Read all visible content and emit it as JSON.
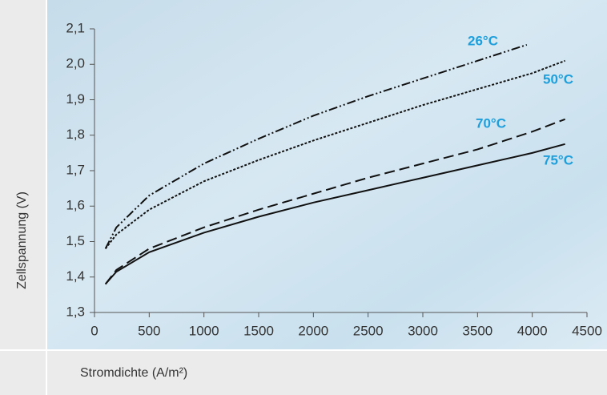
{
  "chart_data": {
    "type": "line",
    "x_label": "Stromdichte (A/m²)",
    "y_label": "Zellspannung (V)",
    "xlim": [
      0,
      4500
    ],
    "xticks": [
      0,
      500,
      1000,
      1500,
      2000,
      2500,
      3000,
      3500,
      4000,
      4500
    ],
    "ylim": [
      1.3,
      2.1
    ],
    "yticks": [
      {
        "value": 1.3,
        "label": "1,3"
      },
      {
        "value": 1.4,
        "label": "1,4"
      },
      {
        "value": 1.5,
        "label": "1,5"
      },
      {
        "value": 1.6,
        "label": "1,6"
      },
      {
        "value": 1.7,
        "label": "1,7"
      },
      {
        "value": 1.8,
        "label": "1,8"
      },
      {
        "value": 1.9,
        "label": "1,9"
      },
      {
        "value": 2.0,
        "label": "2,0"
      },
      {
        "value": 2.1,
        "label": "2,1"
      }
    ],
    "label_color": "#1e9fdc",
    "series": [
      {
        "name": "26°C",
        "color": "#111111",
        "line_style": "dash-dot-dot",
        "x": [
          100,
          200,
          500,
          1000,
          1500,
          2000,
          2500,
          3000,
          3500,
          3950
        ],
        "values": [
          1.48,
          1.54,
          1.63,
          1.72,
          1.79,
          1.855,
          1.91,
          1.96,
          2.01,
          2.055
        ]
      },
      {
        "name": "50°C",
        "color": "#111111",
        "line_style": "dotted",
        "x": [
          100,
          200,
          500,
          1000,
          1500,
          2000,
          2500,
          3000,
          3500,
          4000,
          4300
        ],
        "values": [
          1.48,
          1.52,
          1.59,
          1.67,
          1.73,
          1.785,
          1.835,
          1.885,
          1.93,
          1.975,
          2.01
        ]
      },
      {
        "name": "70°C",
        "color": "#111111",
        "line_style": "dashed",
        "x": [
          100,
          200,
          500,
          1000,
          1500,
          2000,
          2500,
          3000,
          3500,
          4000,
          4300
        ],
        "values": [
          1.38,
          1.42,
          1.48,
          1.54,
          1.59,
          1.635,
          1.68,
          1.72,
          1.76,
          1.81,
          1.845
        ]
      },
      {
        "name": "75°C",
        "color": "#111111",
        "line_style": "solid",
        "x": [
          100,
          200,
          500,
          1000,
          1500,
          2000,
          2500,
          3000,
          3500,
          4000,
          4300
        ],
        "values": [
          1.38,
          1.415,
          1.47,
          1.525,
          1.57,
          1.61,
          1.645,
          1.68,
          1.715,
          1.75,
          1.775
        ]
      }
    ]
  }
}
